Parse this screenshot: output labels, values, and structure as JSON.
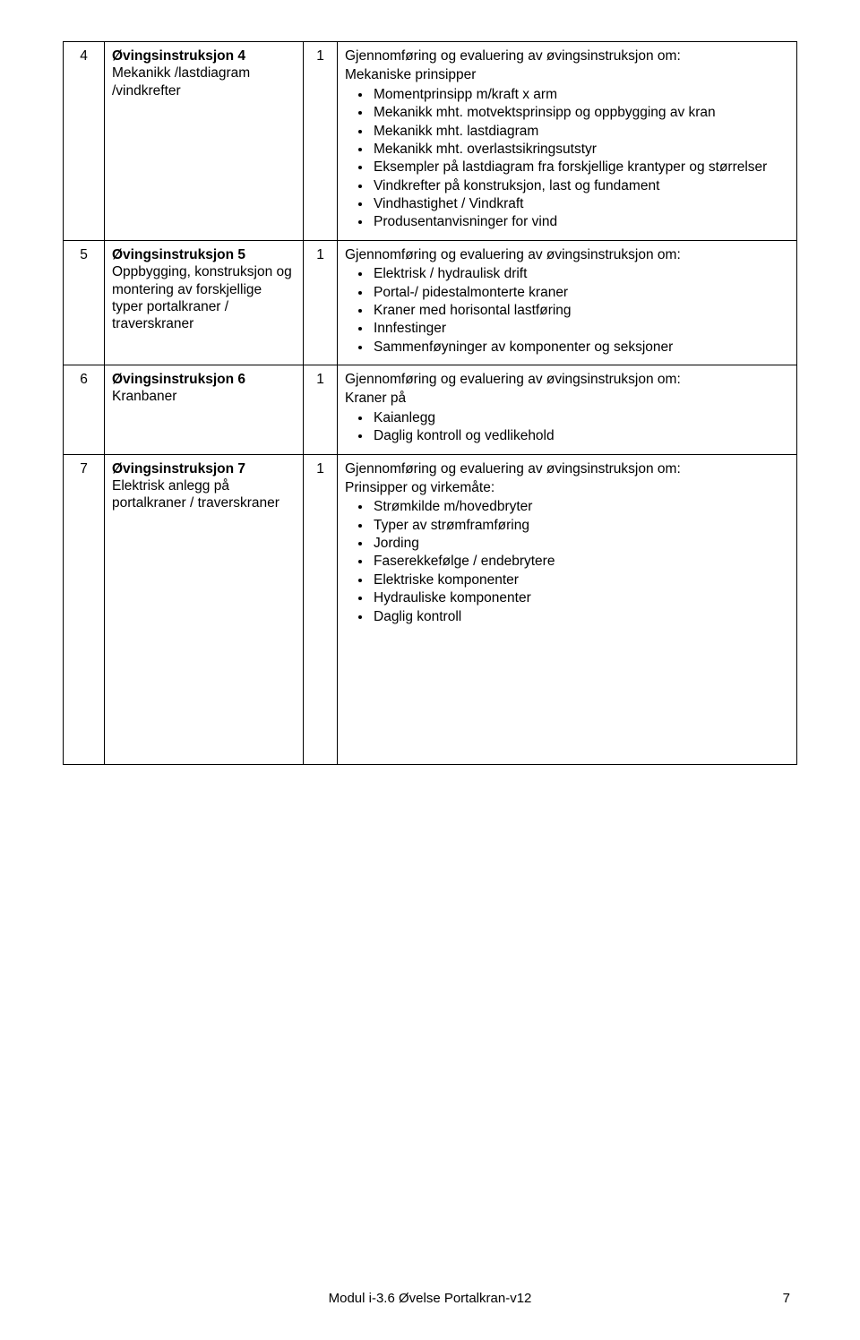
{
  "footer": {
    "text": "Modul i-3.6 Øvelse Portalkran-v12",
    "page_number": "7"
  },
  "rows": [
    {
      "num": "4",
      "title_bold": "Øvingsinstruksjon 4",
      "title_rest": "Mekanikk /lastdiagram /vindkrefter",
      "hours": "1",
      "desc_intro_a": "Gjennomføring og evaluering av øvingsinstruksjon om:",
      "desc_intro_b": "Mekaniske prinsipper",
      "bullets": [
        "Momentprinsipp m/kraft x arm",
        "Mekanikk mht. motvektsprinsipp og oppbygging av kran",
        "Mekanikk mht. lastdiagram",
        "Mekanikk mht. overlastsikringsutstyr",
        "Eksempler på lastdiagram fra forskjellige krantyper og størrelser",
        "Vindkrefter på konstruksjon, last og fundament",
        "Vindhastighet / Vindkraft",
        "Produsentanvisninger for vind"
      ]
    },
    {
      "num": "5",
      "title_bold": "Øvingsinstruksjon 5",
      "title_rest": "Oppbygging, konstruksjon og montering av forskjellige typer portalkraner / traverskraner",
      "hours": "1",
      "desc_intro_a": "Gjennomføring og evaluering av øvingsinstruksjon om:",
      "desc_intro_b": "",
      "bullets": [
        "Elektrisk / hydraulisk drift",
        "Portal-/ pidestalmonterte kraner",
        "Kraner med horisontal lastføring",
        "Innfestinger",
        "Sammenføyninger av komponenter og seksjoner"
      ]
    },
    {
      "num": "6",
      "title_bold": "Øvingsinstruksjon 6",
      "title_rest": "Kranbaner",
      "hours": "1",
      "desc_intro_a": "Gjennomføring og evaluering av øvingsinstruksjon om:",
      "desc_intro_b": "Kraner på",
      "bullets": [
        "Kaianlegg",
        "Daglig kontroll og vedlikehold"
      ]
    },
    {
      "num": "7",
      "title_bold": "Øvingsinstruksjon 7",
      "title_rest": "Elektrisk anlegg på portalkraner / traverskraner",
      "hours": "1",
      "desc_intro_a": "Gjennomføring og evaluering av øvingsinstruksjon om:",
      "desc_intro_b": "Prinsipper og virkemåte:",
      "bullets": [
        "Strømkilde m/hovedbryter",
        "Typer av strømframføring",
        "Jording",
        "Faserekkefølge / endebrytere",
        "Elektriske komponenter",
        "Hydrauliske komponenter",
        "Daglig kontroll"
      ]
    }
  ]
}
